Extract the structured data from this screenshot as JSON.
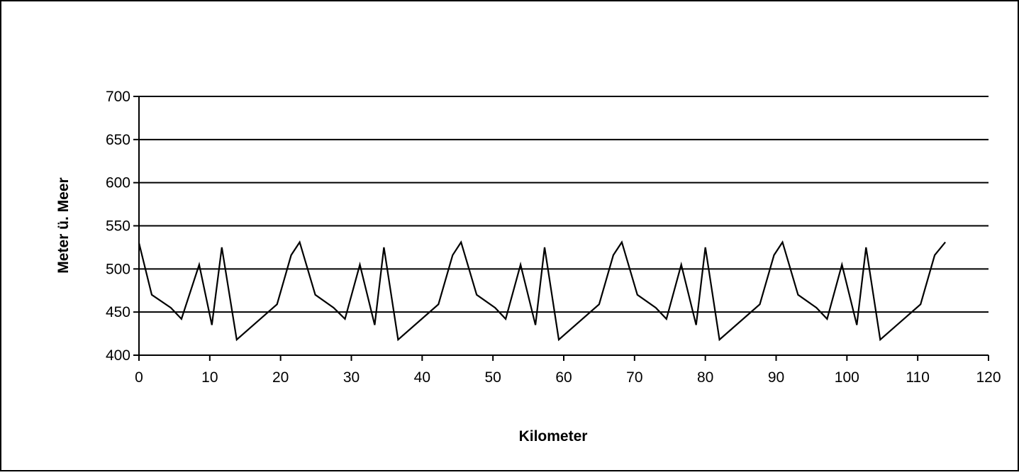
{
  "chart_data": {
    "type": "line",
    "title": "",
    "xlabel": "Kilometer",
    "ylabel": "Meter ü. Meer",
    "xlim": [
      0,
      120
    ],
    "ylim": [
      400,
      700
    ],
    "x_ticks": [
      "0",
      "10",
      "20",
      "30",
      "40",
      "50",
      "60",
      "70",
      "80",
      "90",
      "100",
      "110",
      "120"
    ],
    "y_ticks": [
      "400",
      "450",
      "500",
      "550",
      "600",
      "650",
      "700"
    ],
    "grid": "horizontal",
    "legend": "none",
    "series": [
      {
        "color": "#000000",
        "x": [
          0,
          1.8,
          4.5,
          6,
          8.5,
          10.3,
          11.7,
          13.8,
          19.5,
          21.5,
          22.7,
          24.9,
          27.5,
          29.1,
          31.2,
          33.3,
          34.6,
          36.6,
          42.3,
          44.3,
          45.5,
          47.7,
          50.3,
          51.8,
          53.9,
          56.0,
          57.3,
          59.3,
          65.0,
          67.0,
          68.2,
          70.4,
          73.0,
          74.5,
          76.6,
          78.7,
          80.0,
          82.0,
          87.7,
          89.7,
          90.9,
          93.1,
          95.7,
          97.2,
          99.3,
          101.4,
          102.7,
          104.7,
          110.4,
          112.4,
          113.9
        ],
        "y": [
          530,
          470,
          455,
          442,
          505,
          435,
          525,
          418,
          459,
          516,
          531,
          470,
          455,
          442,
          505,
          435,
          525,
          418,
          459,
          516,
          531,
          470,
          455,
          442,
          505,
          435,
          525,
          418,
          459,
          516,
          531,
          470,
          455,
          442,
          505,
          435,
          525,
          418,
          459,
          516,
          531,
          470,
          455,
          442,
          505,
          435,
          525,
          418,
          459,
          516,
          531
        ]
      }
    ]
  }
}
